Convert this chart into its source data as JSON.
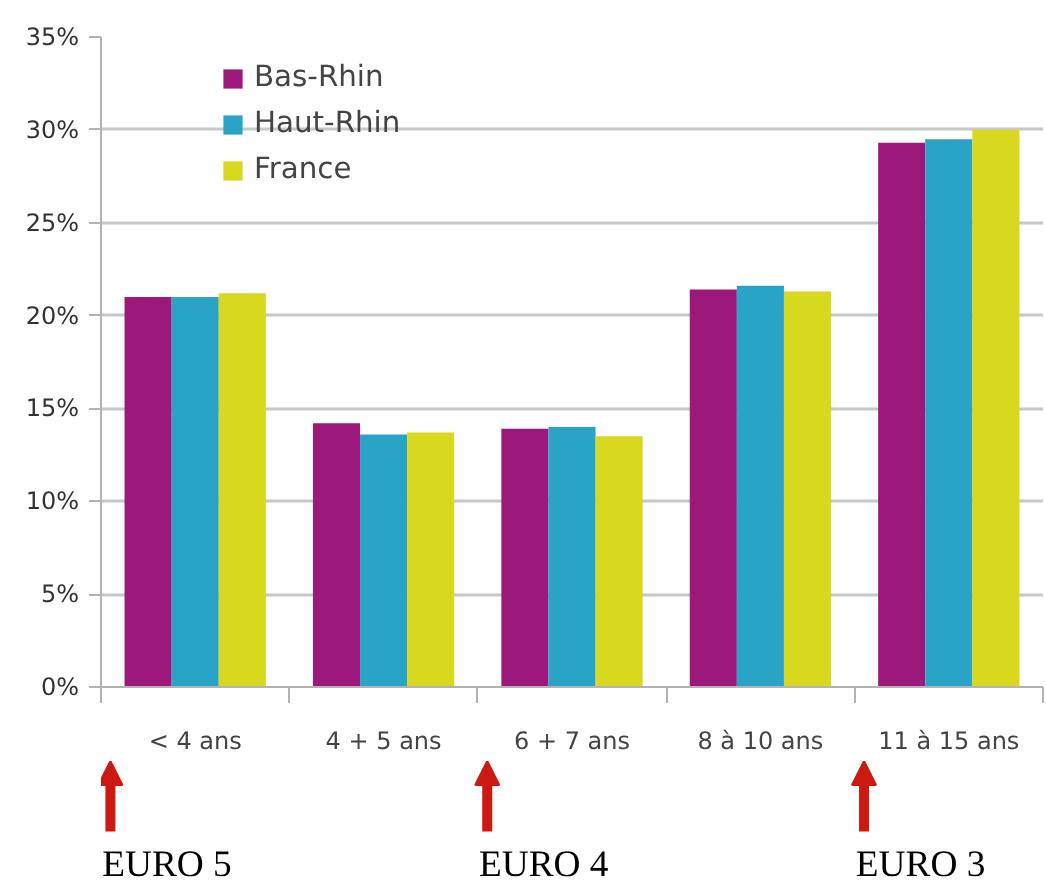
{
  "chart_data": {
    "type": "bar",
    "categories": [
      "< 4 ans",
      "4 + 5 ans",
      "6 + 7 ans",
      "8 à 10 ans",
      "11 à 15 ans"
    ],
    "series": [
      {
        "name": "Bas-Rhin",
        "color": "#9c187a",
        "values": [
          21.0,
          14.2,
          13.9,
          21.4,
          29.3
        ]
      },
      {
        "name": "Haut-Rhin",
        "color": "#29a4c7",
        "values": [
          21.0,
          13.6,
          14.0,
          21.6,
          29.5
        ]
      },
      {
        "name": "France",
        "color": "#d8d81e",
        "values": [
          21.2,
          13.7,
          13.5,
          21.3,
          30.0
        ]
      }
    ],
    "ylim": [
      0,
      35
    ],
    "yticks": [
      {
        "value": 0,
        "label": "0%"
      },
      {
        "value": 5,
        "label": "5%"
      },
      {
        "value": 10,
        "label": "10%"
      },
      {
        "value": 15,
        "label": "15%"
      },
      {
        "value": 20,
        "label": "20%"
      },
      {
        "value": 25,
        "label": "25%"
      },
      {
        "value": 30,
        "label": "30%"
      },
      {
        "value": 35,
        "label": "35%"
      }
    ],
    "grid": "y",
    "legend": "top left",
    "annotations": [
      "EURO 5",
      "EURO 4",
      "EURO 3"
    ]
  }
}
